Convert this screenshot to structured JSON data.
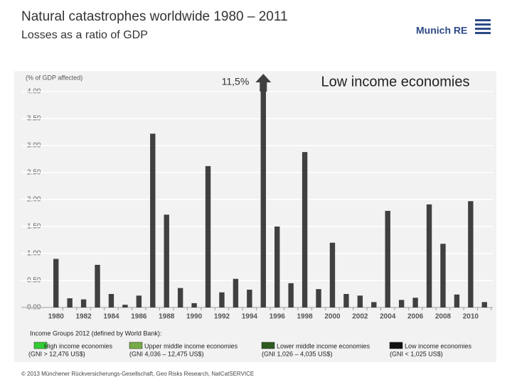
{
  "header": {
    "title": "Natural catastrophes worldwide 1980 – 2011",
    "subtitle": "Losses as a ratio of GDP",
    "logo": "Munich RE"
  },
  "chart_data": {
    "type": "bar",
    "y_label": "(% of GDP affected)",
    "annotation": "Low  income economies",
    "categories": [
      "1980",
      null,
      "1982",
      null,
      "1984",
      null,
      "1986",
      null,
      "1988",
      null,
      "1990",
      null,
      "1992",
      null,
      "1994",
      null,
      "1996",
      null,
      "1998",
      null,
      "2000",
      null,
      "2002",
      null,
      "2004",
      null,
      "2006",
      null,
      "2008",
      null,
      "2010",
      null
    ],
    "values": [
      0.9,
      0.17,
      0.15,
      0.79,
      0.25,
      0.05,
      0.22,
      3.22,
      1.72,
      0.36,
      0.08,
      2.62,
      0.28,
      0.53,
      0.33,
      11.5,
      1.5,
      0.45,
      2.88,
      0.34,
      1.2,
      0.25,
      0.22,
      0.1,
      1.79,
      0.14,
      0.18,
      1.91,
      1.18,
      0.24,
      1.97,
      0.1
    ],
    "value_labels": [
      null,
      null,
      null,
      null,
      null,
      null,
      null,
      null,
      null,
      null,
      null,
      null,
      null,
      null,
      null,
      "11,5%",
      null,
      null,
      null,
      null,
      null,
      null,
      null,
      null,
      null,
      null,
      null,
      null,
      null,
      null,
      null,
      null
    ],
    "color": "#404040",
    "ylim": [
      0,
      4
    ],
    "yticks": [
      {
        "value": 0,
        "label": "0.00"
      },
      {
        "value": 0.5,
        "label": "0.50"
      },
      {
        "value": 1,
        "label": "1.00"
      },
      {
        "value": 1.5,
        "label": "1.50"
      },
      {
        "value": 2,
        "label": "2.00"
      },
      {
        "value": 2.5,
        "label": "2.50"
      },
      {
        "value": 3,
        "label": "3.00"
      },
      {
        "value": 3.5,
        "label": "3.50"
      },
      {
        "value": 4,
        "label": "4.00"
      }
    ],
    "grid": true,
    "legend_title": "Income Groups 2012 (defined by World Bank):",
    "legend_items": [
      {
        "label": "High income economies",
        "sublabel": "(GNI > 12,476 US$)",
        "color": "#33cc33"
      },
      {
        "label": "Upper middle income economies",
        "sublabel": "(GNI 4,036 – 12,475 US$)",
        "color": "#77aa44"
      },
      {
        "label": "Lower middle income economies",
        "sublabel": "(GNI 1,026 – 4,035 US$)",
        "color": "#2d5a1e"
      },
      {
        "label": "Low  income economies",
        "sublabel": "(GNI < 1,025 US$)",
        "color": "#111111"
      }
    ]
  },
  "footer": "© 2013 Münchener Rückversicherungs-Gesellschaft, Geo Risks Research, NatCatSERVICE"
}
